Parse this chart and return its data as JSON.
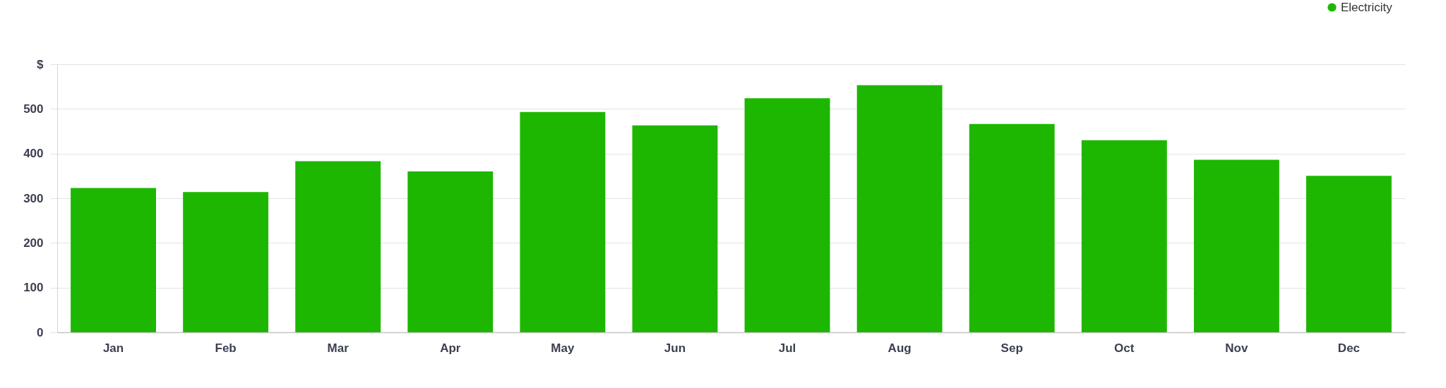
{
  "chart_data": {
    "type": "bar",
    "categories": [
      "Jan",
      "Feb",
      "Mar",
      "Apr",
      "May",
      "Jun",
      "Jul",
      "Aug",
      "Sep",
      "Oct",
      "Nov",
      "Dec"
    ],
    "series": [
      {
        "name": "Electricity",
        "color": "#1db702",
        "values": [
          323,
          314,
          383,
          360,
          493,
          463,
          524,
          553,
          466,
          430,
          386,
          350
        ]
      }
    ],
    "ylim": [
      0,
      600
    ],
    "yticks": [
      0,
      100,
      200,
      300,
      400,
      500,
      {
        "value": 600,
        "label": "$"
      }
    ],
    "grid": "y",
    "legend": "top right"
  }
}
